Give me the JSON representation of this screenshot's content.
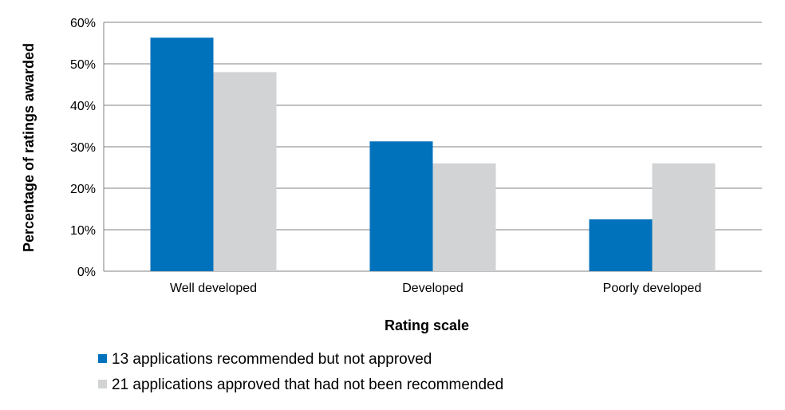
{
  "chart_data": {
    "type": "bar",
    "title": "",
    "xlabel": "Rating scale",
    "ylabel": "Percentage of ratings awarded",
    "categories": [
      "Well developed",
      "Developed",
      "Poorly developed"
    ],
    "series": [
      {
        "name": "13 applications recommended but not approved",
        "values": [
          56.3,
          31.3,
          12.5
        ],
        "color": "#0072bc"
      },
      {
        "name": "21 applications approved that had not been recommended",
        "values": [
          48.0,
          26.0,
          26.0
        ],
        "color": "#d1d3d4"
      }
    ],
    "y_ticks": [
      "0%",
      "10%",
      "20%",
      "30%",
      "40%",
      "50%",
      "60%"
    ],
    "ylim": [
      0,
      60
    ],
    "grid": true,
    "gridline_color": "#808080",
    "legend_position": "bottom-left"
  }
}
